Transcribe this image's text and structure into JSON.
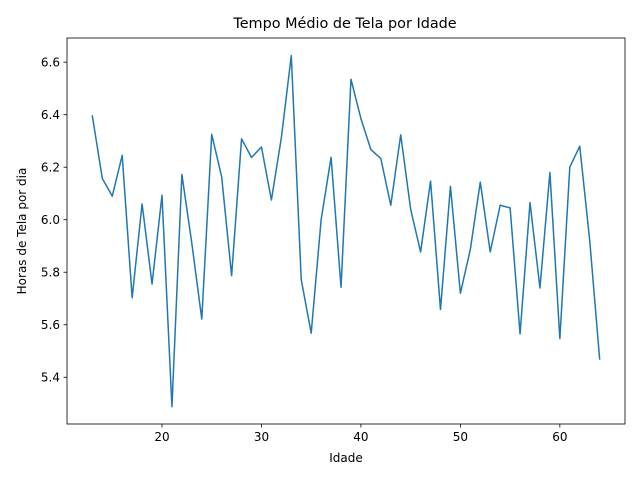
{
  "chart_data": {
    "type": "line",
    "title": "Tempo Médio de Tela por Idade",
    "xlabel": "Idade",
    "ylabel": "Horas de Tela por dia",
    "xlim": [
      10.45,
      66.55
    ],
    "ylim": [
      5.222,
      6.692
    ],
    "xticks": [
      20,
      30,
      40,
      50,
      60
    ],
    "yticks": [
      5.4,
      5.6,
      5.8,
      6.0,
      6.2,
      6.4,
      6.6
    ],
    "grid": false,
    "line_color": "#1f77b4",
    "series": [
      {
        "x": [
          13,
          14,
          15,
          16,
          17,
          18,
          19,
          20,
          21,
          22,
          23,
          24,
          25,
          26,
          27,
          28,
          29,
          30,
          31,
          32,
          33,
          34,
          35,
          36,
          37,
          38,
          39,
          40,
          41,
          42,
          43,
          44,
          45,
          46,
          47,
          48,
          49,
          50,
          51,
          52,
          53,
          54,
          55,
          56,
          57,
          58,
          59,
          60,
          61,
          62,
          63,
          64
        ],
        "values": [
          6.395,
          6.157,
          6.09,
          6.245,
          5.703,
          6.06,
          5.755,
          6.093,
          5.288,
          6.172,
          5.91,
          5.622,
          6.325,
          6.163,
          5.787,
          6.308,
          6.237,
          6.277,
          6.075,
          6.312,
          6.625,
          5.772,
          5.568,
          6.0,
          6.238,
          5.743,
          6.535,
          6.385,
          6.267,
          6.233,
          6.055,
          6.323,
          6.04,
          5.877,
          6.147,
          5.658,
          6.127,
          5.72,
          5.887,
          6.143,
          5.877,
          6.055,
          6.045,
          5.565,
          6.065,
          5.74,
          6.18,
          5.547,
          6.2,
          6.28,
          5.922,
          5.47
        ]
      }
    ]
  }
}
